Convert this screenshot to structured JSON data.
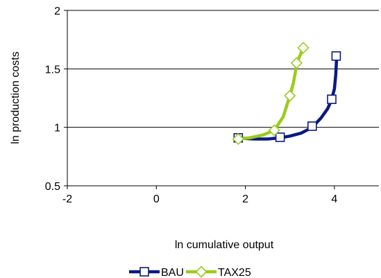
{
  "chart_data": {
    "type": "line",
    "title": "",
    "xlabel": "ln cumulative output",
    "ylabel": "ln production costs",
    "xlim": [
      -2,
      5
    ],
    "ylim": [
      0.5,
      2
    ],
    "xticks": [
      -2,
      0,
      2,
      4
    ],
    "yticks": [
      0.5,
      1,
      1.5,
      2
    ],
    "ytick_labels": [
      "0.5",
      "1",
      "1.5",
      "2"
    ],
    "grid": "horizontal",
    "legend_position": "bottom",
    "series": [
      {
        "name": "BAU",
        "color": "#0a1a80",
        "marker": "square",
        "curve": [
          [
            1.84,
            0.91
          ],
          [
            2.0,
            0.905
          ],
          [
            2.2,
            0.9
          ],
          [
            2.5,
            0.9
          ],
          [
            2.78,
            0.91
          ],
          [
            3.0,
            0.925
          ],
          [
            3.25,
            0.95
          ],
          [
            3.5,
            1.0
          ],
          [
            3.7,
            1.08
          ],
          [
            3.85,
            1.16
          ],
          [
            3.94,
            1.24
          ],
          [
            4.0,
            1.33
          ],
          [
            4.03,
            1.45
          ],
          [
            4.05,
            1.6
          ]
        ],
        "points": [
          [
            1.84,
            0.91
          ],
          [
            2.78,
            0.915
          ],
          [
            3.5,
            1.01
          ],
          [
            3.94,
            1.24
          ],
          [
            4.04,
            1.61
          ]
        ]
      },
      {
        "name": "TAX25",
        "color": "#99cc1a",
        "marker": "diamond",
        "curve": [
          [
            1.84,
            0.9
          ],
          [
            2.1,
            0.91
          ],
          [
            2.4,
            0.935
          ],
          [
            2.65,
            0.975
          ],
          [
            2.85,
            1.09
          ],
          [
            3.0,
            1.27
          ],
          [
            3.08,
            1.38
          ],
          [
            3.15,
            1.53
          ],
          [
            3.2,
            1.59
          ],
          [
            3.3,
            1.68
          ]
        ],
        "points": [
          [
            1.84,
            0.9
          ],
          [
            2.65,
            0.975
          ],
          [
            3.0,
            1.27
          ],
          [
            3.15,
            1.55
          ],
          [
            3.3,
            1.68
          ]
        ]
      }
    ]
  }
}
